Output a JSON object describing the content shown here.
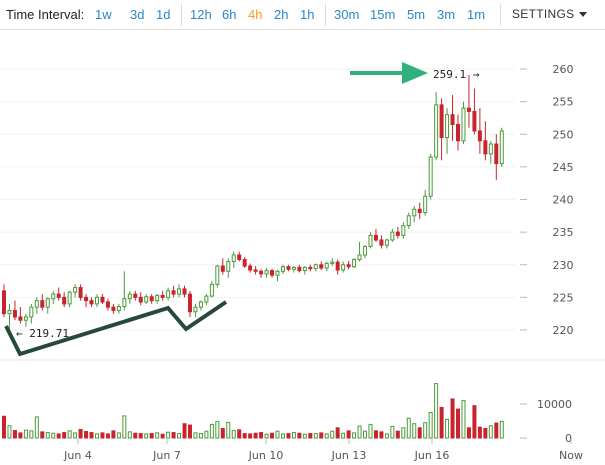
{
  "toolbar": {
    "label": "Time Interval:",
    "intervals": [
      "1w",
      "3d",
      "1d",
      "12h",
      "6h",
      "4h",
      "2h",
      "1h",
      "30m",
      "15m",
      "5m",
      "3m",
      "1m"
    ],
    "active": "4h",
    "settings_label": "SETTINGS"
  },
  "colors": {
    "up": "#4a9a3a",
    "down": "#c8242d",
    "accent": "#2a87c9",
    "active": "#f0a020",
    "annotation_arrow": "#2fb07c",
    "annotation_line": "#27493c"
  },
  "annotations": {
    "high_label": "259.1 →",
    "low_label": "← 219.71"
  },
  "chart_data": {
    "type": "candlestick",
    "price_axis": {
      "ticks": [
        220,
        225,
        230,
        235,
        240,
        245,
        250,
        255,
        260
      ],
      "range": [
        217,
        262
      ]
    },
    "volume_axis": {
      "ticks": [
        0,
        10000
      ],
      "range": [
        0,
        16000
      ]
    },
    "x_labels": [
      "Jun 4",
      "Jun 7",
      "Jun 10",
      "Jun 13",
      "Jun 16",
      "Now"
    ],
    "candles": [
      [
        226.0,
        227.0,
        222.0,
        222.5,
        6400
      ],
      [
        222.5,
        224.0,
        219.71,
        223.0,
        3600
      ],
      [
        223.0,
        224.5,
        221.5,
        222.0,
        2200
      ],
      [
        222.0,
        223.5,
        221.0,
        221.5,
        1500
      ],
      [
        221.5,
        222.5,
        220.5,
        222.0,
        2300
      ],
      [
        222.0,
        224.0,
        221.0,
        223.5,
        2100
      ],
      [
        223.5,
        225.0,
        222.5,
        224.5,
        6200
      ],
      [
        224.5,
        225.5,
        223.0,
        223.5,
        1800
      ],
      [
        223.5,
        225.0,
        222.5,
        224.8,
        1600
      ],
      [
        224.8,
        226.0,
        224.0,
        225.5,
        1400
      ],
      [
        225.5,
        226.5,
        224.5,
        225.0,
        1200
      ],
      [
        225.0,
        225.8,
        223.5,
        224.0,
        1600
      ],
      [
        224.0,
        226.0,
        223.5,
        225.8,
        2100
      ],
      [
        225.8,
        227.0,
        225.0,
        226.5,
        1500
      ],
      [
        226.5,
        227.0,
        224.5,
        225.0,
        2500
      ],
      [
        225.0,
        225.5,
        223.5,
        224.5,
        1900
      ],
      [
        224.5,
        225.0,
        223.5,
        224.0,
        1600
      ],
      [
        224.0,
        225.5,
        223.5,
        225.0,
        1200
      ],
      [
        225.0,
        225.5,
        224.0,
        224.3,
        1500
      ],
      [
        224.3,
        224.8,
        223.0,
        223.5,
        1200
      ],
      [
        223.5,
        224.0,
        222.5,
        223.0,
        2100
      ],
      [
        223.0,
        224.0,
        222.5,
        223.6,
        1500
      ],
      [
        223.6,
        229.0,
        223.0,
        224.8,
        6500
      ],
      [
        224.8,
        226.0,
        224.0,
        225.5,
        1800
      ],
      [
        225.5,
        226.0,
        224.5,
        225.0,
        1400
      ],
      [
        225.0,
        225.8,
        223.8,
        224.3,
        1300
      ],
      [
        224.3,
        225.5,
        224.0,
        225.1,
        1200
      ],
      [
        225.1,
        225.5,
        224.0,
        224.5,
        1300
      ],
      [
        224.5,
        225.5,
        224.0,
        225.3,
        1500
      ],
      [
        225.3,
        226.0,
        224.5,
        225.0,
        1100
      ],
      [
        225.0,
        226.5,
        224.5,
        226.0,
        1700
      ],
      [
        226.0,
        226.8,
        225.0,
        225.5,
        1600
      ],
      [
        225.5,
        227.0,
        225.0,
        226.3,
        1300
      ],
      [
        226.3,
        226.8,
        225.0,
        225.5,
        4200
      ],
      [
        225.5,
        226.0,
        222.0,
        222.8,
        3800
      ],
      [
        222.8,
        224.0,
        222.0,
        223.5,
        1500
      ],
      [
        223.5,
        224.5,
        223.0,
        224.3,
        1300
      ],
      [
        224.3,
        225.5,
        223.8,
        225.2,
        2000
      ],
      [
        225.2,
        227.5,
        225.0,
        227.0,
        4000
      ],
      [
        227.0,
        230.0,
        226.5,
        229.8,
        4800
      ],
      [
        229.8,
        231.0,
        228.5,
        229.0,
        2800
      ],
      [
        229.0,
        231.0,
        228.0,
        230.5,
        4600
      ],
      [
        230.5,
        232.0,
        229.5,
        231.5,
        2200
      ],
      [
        231.5,
        232.0,
        230.5,
        230.8,
        2400
      ],
      [
        230.8,
        231.2,
        229.5,
        229.8,
        1300
      ],
      [
        229.8,
        230.2,
        228.8,
        229.2,
        1200
      ],
      [
        229.2,
        229.8,
        228.5,
        229.0,
        1400
      ],
      [
        229.0,
        229.3,
        228.0,
        228.6,
        1600
      ],
      [
        228.6,
        229.5,
        228.0,
        229.1,
        1100
      ],
      [
        229.1,
        229.4,
        228.0,
        228.4,
        1400
      ],
      [
        228.4,
        229.2,
        227.5,
        229.0,
        2000
      ],
      [
        229.0,
        230.0,
        228.6,
        229.7,
        1200
      ],
      [
        229.7,
        230.0,
        229.0,
        229.3,
        1300
      ],
      [
        229.3,
        229.8,
        228.8,
        229.6,
        1600
      ],
      [
        229.6,
        230.0,
        228.8,
        229.1,
        1400
      ],
      [
        229.1,
        229.8,
        228.5,
        229.6,
        1100
      ],
      [
        229.6,
        230.0,
        229.0,
        229.4,
        1300
      ],
      [
        229.4,
        230.2,
        229.0,
        230.0,
        1300
      ],
      [
        230.0,
        230.5,
        229.2,
        229.5,
        1500
      ],
      [
        229.5,
        230.5,
        229.0,
        230.2,
        1200
      ],
      [
        230.2,
        231.0,
        229.8,
        230.4,
        2000
      ],
      [
        230.4,
        230.8,
        228.5,
        229.2,
        3000
      ],
      [
        229.2,
        230.5,
        228.8,
        230.0,
        1400
      ],
      [
        230.0,
        230.6,
        229.3,
        229.7,
        2100
      ],
      [
        229.7,
        231.0,
        229.5,
        230.8,
        1500
      ],
      [
        230.8,
        233.5,
        230.5,
        231.5,
        3500
      ],
      [
        231.5,
        233.0,
        231.0,
        232.8,
        2000
      ],
      [
        232.8,
        235.0,
        232.5,
        234.5,
        4000
      ],
      [
        234.5,
        235.5,
        233.5,
        233.8,
        2100
      ],
      [
        233.8,
        234.5,
        232.5,
        233.0,
        1800
      ],
      [
        233.0,
        234.0,
        232.5,
        233.8,
        1200
      ],
      [
        233.8,
        235.5,
        233.5,
        235.0,
        3400
      ],
      [
        235.0,
        235.8,
        234.0,
        234.5,
        2000
      ],
      [
        234.5,
        236.5,
        234.0,
        236.0,
        3000
      ],
      [
        236.0,
        238.0,
        235.5,
        237.5,
        5800
      ],
      [
        237.5,
        239.0,
        236.5,
        238.5,
        4200
      ],
      [
        238.5,
        239.5,
        237.0,
        238.0,
        3000
      ],
      [
        238.0,
        241.5,
        237.5,
        240.5,
        4500
      ],
      [
        240.5,
        247.0,
        240.0,
        246.5,
        7500
      ],
      [
        246.5,
        256.5,
        246.0,
        254.5,
        16000
      ],
      [
        254.5,
        255.5,
        246.0,
        249.5,
        9000
      ],
      [
        249.5,
        254.0,
        247.0,
        253.0,
        5500
      ],
      [
        253.0,
        256.0,
        249.0,
        251.5,
        11500
      ],
      [
        251.5,
        253.0,
        247.5,
        249.0,
        8500
      ],
      [
        249.0,
        255.0,
        248.5,
        254.0,
        11000
      ],
      [
        254.0,
        259.1,
        251.0,
        253.5,
        3000
      ],
      [
        253.5,
        257.0,
        250.0,
        250.5,
        9500
      ],
      [
        250.5,
        254.0,
        247.0,
        249.0,
        3200
      ],
      [
        249.0,
        252.0,
        246.0,
        247.0,
        2800
      ],
      [
        247.0,
        249.0,
        245.5,
        248.5,
        3600
      ],
      [
        248.5,
        250.0,
        243.0,
        245.5,
        4400
      ],
      [
        245.5,
        251.0,
        245.0,
        250.5,
        4900
      ]
    ]
  }
}
